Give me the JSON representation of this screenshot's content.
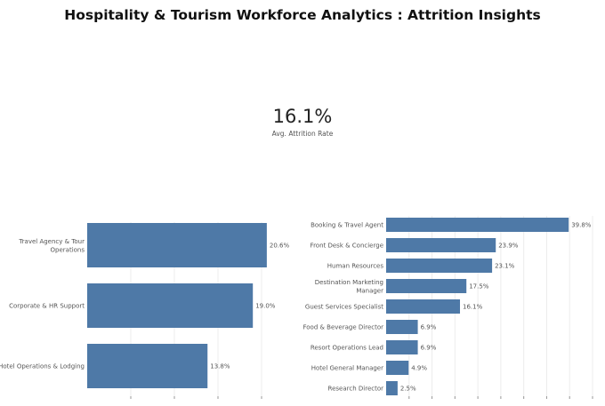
{
  "header": {
    "title": "Hospitality & Tourism Workforce Analytics : Attrition Insights"
  },
  "kpi": {
    "value": "16.1%",
    "label": "Avg. Attrition Rate"
  },
  "colors": {
    "bar": "#4e79a7",
    "grid": "#ececec",
    "text": "#555555"
  },
  "chart_data": [
    {
      "type": "bar",
      "orientation": "horizontal",
      "categories": [
        [
          "Travel Agency & Tour",
          "Operations"
        ],
        [
          "Corporate & HR Support"
        ],
        [
          "Hotel Operations & Lodging"
        ]
      ],
      "values": [
        20.6,
        19.0,
        13.8
      ],
      "labels": [
        "20.6%",
        "19.0%",
        "13.8%"
      ],
      "xlim": [
        0,
        25
      ],
      "grid": true
    },
    {
      "type": "bar",
      "orientation": "horizontal",
      "categories": [
        [
          "Booking & Travel Agent"
        ],
        [
          "Front Desk & Concierge"
        ],
        [
          "Human Resources"
        ],
        [
          "Destination Marketing",
          "Manager"
        ],
        [
          "Guest Services Specialist"
        ],
        [
          "Food & Beverage Director"
        ],
        [
          "Resort Operations Lead"
        ],
        [
          "Hotel General Manager"
        ],
        [
          "Research Director"
        ]
      ],
      "values": [
        39.8,
        23.9,
        23.1,
        17.5,
        16.1,
        6.9,
        6.9,
        4.9,
        2.5
      ],
      "labels": [
        "39.8%",
        "23.9%",
        "23.1%",
        "17.5%",
        "16.1%",
        "6.9%",
        "6.9%",
        "4.9%",
        "2.5%"
      ],
      "xlim": [
        0,
        45
      ],
      "grid": true
    }
  ]
}
